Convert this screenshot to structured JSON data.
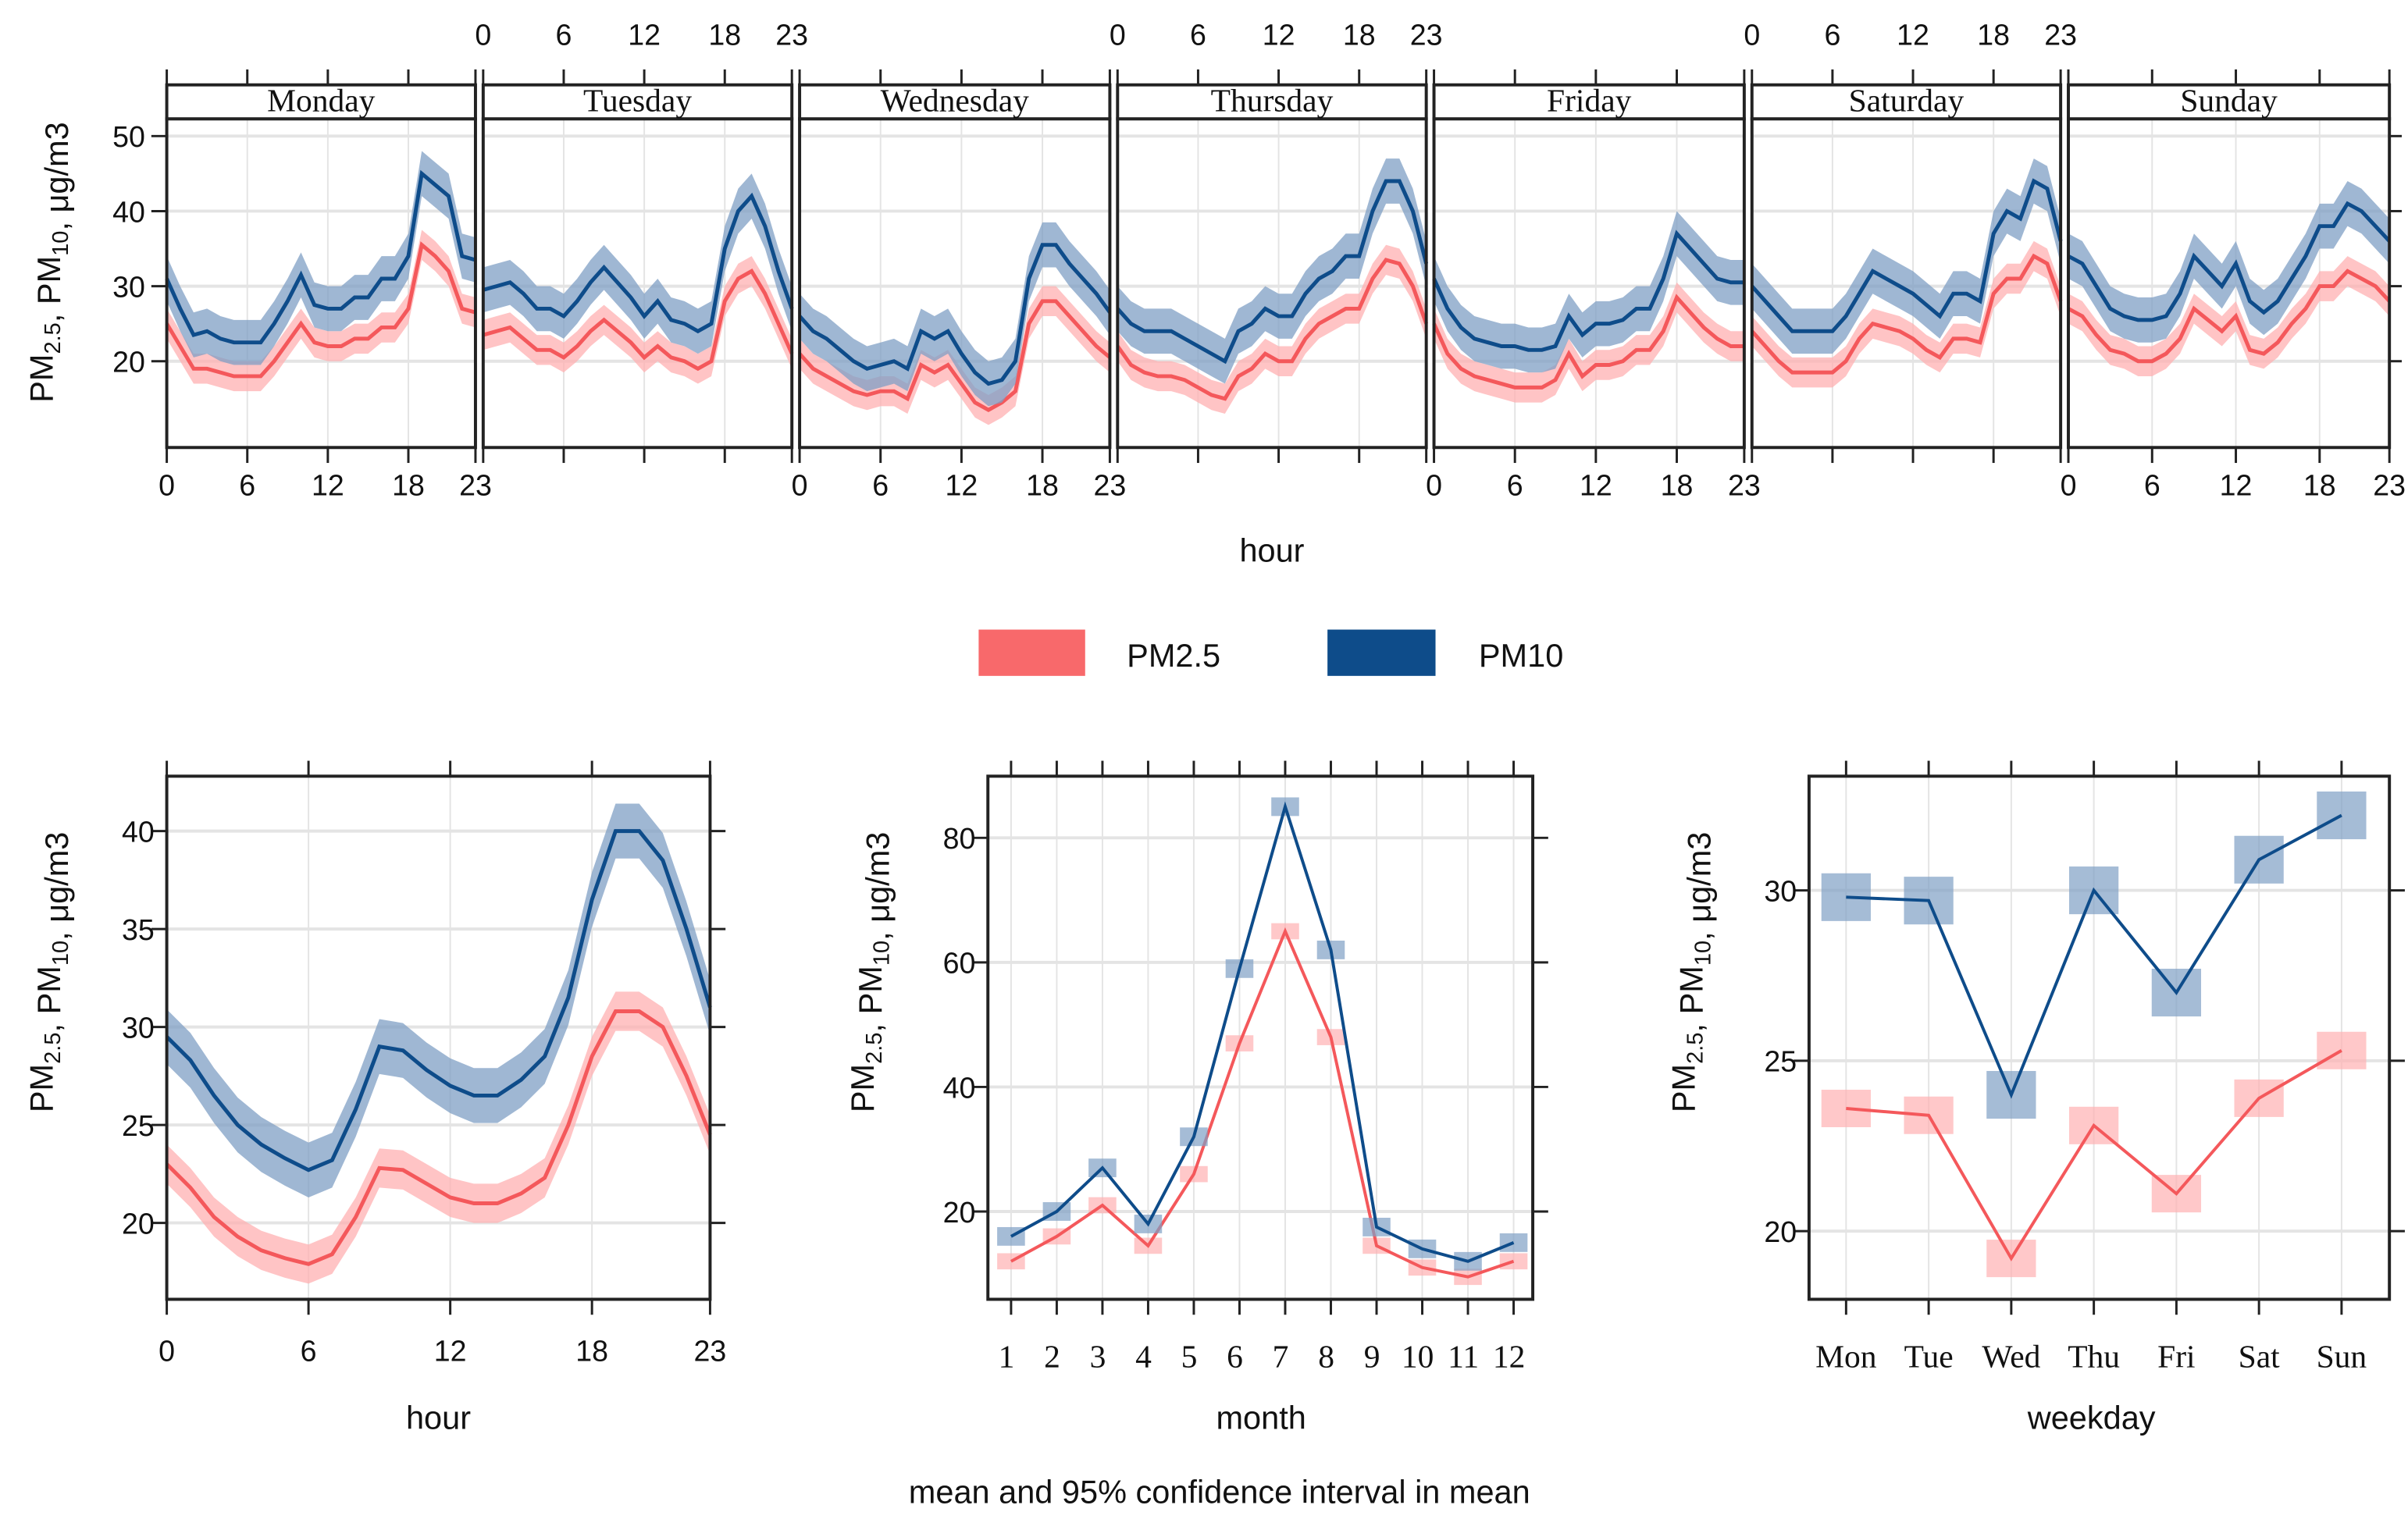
{
  "legend": [
    {
      "label": "PM2.5",
      "color": "#F8696B"
    },
    {
      "label": "PM10",
      "color": "#0E4C8A"
    }
  ],
  "footer": "mean and 95% confidence interval in mean",
  "colors": {
    "pm25_line": "#F4585B",
    "pm25_band": "#FFB0B2",
    "pm10_line": "#0E4C8A",
    "pm10_band": "#7F9FC4",
    "grid": "#E4E4E4",
    "frame": "#222222"
  },
  "chart_data": [
    {
      "id": "day-hour",
      "type": "line",
      "xlabel": "hour",
      "ylabel": "PM2.5, PM10, μg/m3",
      "panels": [
        "Monday",
        "Tuesday",
        "Wednesday",
        "Thursday",
        "Friday",
        "Saturday",
        "Sunday"
      ],
      "xticks": [
        0,
        6,
        12,
        18,
        23
      ],
      "yticks": [
        20,
        30,
        40,
        50
      ],
      "xlim": [
        0,
        23
      ],
      "ylim": [
        8.5,
        52.3
      ],
      "grid": true,
      "series": [
        {
          "name": "PM2.5",
          "ci_halfwidth": 2.0,
          "values": [
            [
              25,
              22,
              19,
              19,
              18.5,
              18,
              18,
              18,
              20,
              22.5,
              25,
              22.5,
              22,
              22,
              23,
              23,
              24.5,
              24.5,
              27,
              35.5,
              34,
              32,
              27,
              26.5
            ],
            [
              23.5,
              24,
              24.5,
              23,
              21.5,
              21.5,
              20.5,
              22,
              24,
              25.5,
              24,
              22.5,
              20.5,
              22,
              20.5,
              20,
              19,
              20,
              28,
              31,
              32,
              29,
              25,
              21
            ],
            [
              21,
              19,
              18,
              17,
              16,
              15.5,
              16,
              16,
              15,
              19.5,
              18.5,
              19.5,
              17,
              14.5,
              13.5,
              14.5,
              16,
              25,
              28,
              28,
              26,
              24,
              22,
              20.5
            ],
            [
              22,
              19.5,
              18.5,
              18,
              18,
              17.5,
              16.5,
              15.5,
              15,
              18,
              19,
              21,
              20,
              20,
              23,
              25,
              26,
              27,
              27,
              31,
              33.5,
              33,
              30,
              25
            ],
            [
              25,
              21,
              19,
              18,
              17.5,
              17,
              16.5,
              16.5,
              16.5,
              17.5,
              21,
              18,
              19.5,
              19.5,
              20,
              21.5,
              21.5,
              24,
              28.5,
              26.5,
              24.5,
              23,
              22,
              22
            ],
            [
              24,
              22,
              20,
              18.5,
              18.5,
              18.5,
              18.5,
              20,
              23,
              25,
              24.5,
              24,
              23,
              21.5,
              20.5,
              23,
              23,
              22.5,
              29,
              31,
              31,
              34,
              33,
              28
            ],
            [
              27,
              26,
              23.5,
              21.5,
              21,
              20,
              20,
              21,
              23,
              27,
              25.5,
              24,
              26,
              21.5,
              21,
              22.5,
              25,
              27,
              30,
              30,
              32,
              31,
              30,
              28
            ]
          ]
        },
        {
          "name": "PM10",
          "ci_halfwidth": 3.0,
          "values": [
            [
              31,
              27,
              23.5,
              24,
              23,
              22.5,
              22.5,
              22.5,
              25,
              28,
              31.5,
              27.5,
              27,
              27,
              28.5,
              28.5,
              31,
              31,
              34,
              45,
              43.5,
              42,
              34,
              33.5
            ],
            [
              29.5,
              30,
              30.5,
              29,
              27,
              27,
              26,
              28,
              30.5,
              32.5,
              30.5,
              28.5,
              26,
              28,
              25.5,
              25,
              24,
              25,
              35,
              40,
              42,
              38,
              32,
              27
            ],
            [
              26,
              24,
              23,
              21.5,
              20,
              19,
              19.5,
              20,
              19,
              24,
              23,
              24,
              21,
              18.5,
              17,
              17.5,
              20,
              31,
              35.5,
              35.5,
              33,
              31,
              29,
              26.5
            ],
            [
              27,
              25,
              24,
              24,
              24,
              23,
              22,
              21,
              20,
              24,
              25,
              27,
              26,
              26,
              29,
              31,
              32,
              34,
              34,
              40,
              44,
              44,
              40,
              33
            ],
            [
              31,
              27,
              24.5,
              23,
              22.5,
              22,
              22,
              21.5,
              21.5,
              22,
              26,
              23.5,
              25,
              25,
              25.5,
              27,
              27,
              31,
              37,
              35,
              33,
              31,
              30.5,
              30.5
            ],
            [
              30,
              28,
              26,
              24,
              24,
              24,
              24,
              26,
              29,
              32,
              31,
              30,
              29,
              27.5,
              26,
              29,
              29,
              28,
              37,
              40,
              39,
              44,
              43,
              36
            ],
            [
              34,
              33,
              30,
              27,
              26,
              25.5,
              25.5,
              26,
              29,
              34,
              32,
              30,
              33,
              28,
              26.5,
              28,
              31,
              34,
              38,
              38,
              41,
              40,
              38,
              36
            ]
          ]
        }
      ]
    },
    {
      "id": "hour",
      "type": "line",
      "xlabel": "hour",
      "ylabel": "PM2.5, PM10, μg/m3",
      "xticks": [
        0,
        6,
        12,
        18,
        23
      ],
      "yticks": [
        20,
        25,
        30,
        35,
        40
      ],
      "xlim": [
        0,
        23
      ],
      "ylim": [
        16.1,
        42.8
      ],
      "grid": true,
      "series": [
        {
          "name": "PM2.5",
          "ci_halfwidth": 1.0,
          "values": [
            23,
            21.8,
            20.3,
            19.3,
            18.6,
            18.2,
            17.9,
            18.4,
            20.3,
            22.8,
            22.7,
            22,
            21.3,
            21,
            21,
            21.5,
            22.3,
            25,
            28.5,
            30.8,
            30.8,
            30,
            27.5,
            24.5
          ]
        },
        {
          "name": "PM10",
          "ci_halfwidth": 1.4,
          "values": [
            29.5,
            28.3,
            26.5,
            25,
            24,
            23.3,
            22.7,
            23.2,
            25.8,
            29,
            28.8,
            27.8,
            27,
            26.5,
            26.5,
            27.3,
            28.5,
            31.5,
            36.5,
            40,
            40,
            38.5,
            35,
            31
          ]
        }
      ]
    },
    {
      "id": "month",
      "type": "line",
      "xlabel": "month",
      "ylabel": "PM2.5, PM10, μg/m3",
      "categories": [
        "1",
        "2",
        "3",
        "4",
        "5",
        "6",
        "7",
        "8",
        "9",
        "10",
        "11",
        "12"
      ],
      "yticks": [
        20,
        40,
        60,
        80
      ],
      "ylim": [
        5.9,
        89.9
      ],
      "grid": true,
      "series": [
        {
          "name": "PM2.5",
          "ci_halfwidth": 0.8,
          "values": [
            12,
            16,
            21,
            14.5,
            26,
            47,
            65,
            48,
            14.5,
            11,
            9.5,
            12
          ]
        },
        {
          "name": "PM10",
          "ci_halfwidth": 1.0,
          "values": [
            16,
            20,
            27,
            18,
            32,
            59,
            85,
            62,
            17.5,
            14,
            12,
            15
          ]
        }
      ]
    },
    {
      "id": "weekday",
      "type": "line",
      "xlabel": "weekday",
      "ylabel": "PM2.5, PM10, μg/m3",
      "categories": [
        "Mon",
        "Tue",
        "Wed",
        "Thu",
        "Fri",
        "Sat",
        "Sun"
      ],
      "yticks": [
        20,
        25,
        30
      ],
      "ylim": [
        18.0,
        33.35
      ],
      "grid": true,
      "series": [
        {
          "name": "PM2.5",
          "ci_halfwidth": 0.55,
          "values": [
            23.6,
            23.4,
            19.2,
            23.1,
            21.1,
            23.9,
            25.3
          ]
        },
        {
          "name": "PM10",
          "ci_halfwidth": 0.7,
          "values": [
            29.8,
            29.7,
            24.0,
            30.0,
            27.0,
            30.9,
            32.2
          ]
        }
      ]
    }
  ]
}
